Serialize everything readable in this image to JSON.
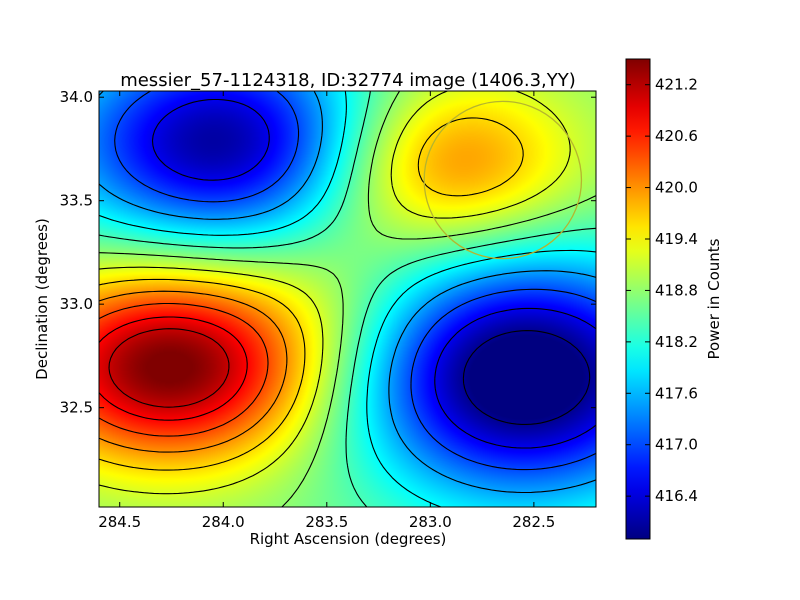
{
  "chart_data": {
    "type": "heatmap",
    "title": "messier_57-1124318, ID:32774 image (1406.3,YY)",
    "xlabel": "Right Ascension (degrees)",
    "ylabel": "Declination (degrees)",
    "xlim": [
      284.6,
      282.2
    ],
    "ylim": [
      32.02,
      34.03
    ],
    "x_ticks": [
      {
        "value": 284.5,
        "label": "284.5"
      },
      {
        "value": 284.0,
        "label": "284.0"
      },
      {
        "value": 283.5,
        "label": "283.5"
      },
      {
        "value": 283.0,
        "label": "283.0"
      },
      {
        "value": 282.5,
        "label": "282.5"
      }
    ],
    "y_ticks": [
      {
        "value": 32.5,
        "label": "32.5"
      },
      {
        "value": 33.0,
        "label": "33.0"
      },
      {
        "value": 33.5,
        "label": "33.5"
      },
      {
        "value": 34.0,
        "label": "34.0"
      }
    ],
    "colormap": "jet",
    "colorbar": {
      "label": "Power in Counts",
      "range": [
        415.9,
        421.5
      ],
      "ticks": [
        {
          "value": 416.4,
          "label": "416.4"
        },
        {
          "value": 417.0,
          "label": "417.0"
        },
        {
          "value": 417.6,
          "label": "417.6"
        },
        {
          "value": 418.2,
          "label": "418.2"
        },
        {
          "value": 418.8,
          "label": "418.8"
        },
        {
          "value": 419.4,
          "label": "419.4"
        },
        {
          "value": 420.0,
          "label": "420.0"
        },
        {
          "value": 420.6,
          "label": "420.6"
        },
        {
          "value": 421.2,
          "label": "421.2"
        }
      ]
    },
    "field": {
      "base": 418.7,
      "components": [
        {
          "ra": 284.25,
          "dec": 32.7,
          "amp": 2.9,
          "sigma_ra": 0.5,
          "sigma_dec": 0.33
        },
        {
          "ra": 282.95,
          "dec": 33.68,
          "amp": 1.6,
          "sigma_ra": 0.45,
          "sigma_dec": 0.3
        },
        {
          "ra": 282.55,
          "dec": 32.65,
          "amp": -3.2,
          "sigma_ra": 0.55,
          "sigma_dec": 0.4
        },
        {
          "ra": 284.0,
          "dec": 33.78,
          "amp": -2.7,
          "sigma_ra": 0.55,
          "sigma_dec": 0.35
        },
        {
          "ra": 283.45,
          "dec": 33.05,
          "amp": 0.3,
          "sigma_ra": 0.35,
          "sigma_dec": 0.3
        }
      ]
    },
    "contour_levels": [
      416.0,
      416.5,
      417.0,
      417.5,
      418.0,
      418.4,
      418.8,
      419.2,
      419.6,
      420.0,
      420.4,
      420.8,
      421.1
    ],
    "contour_color": "#000000",
    "circle_marker": {
      "ra": 282.65,
      "dec": 33.6,
      "radius_deg": 0.38,
      "color": "#b5b52e"
    }
  }
}
